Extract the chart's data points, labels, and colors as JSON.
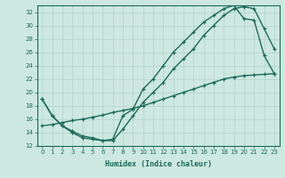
{
  "background_color": "#cde8e0",
  "line_color": "#1a6b5a",
  "grid_color": "#b8d8d0",
  "xlabel": "Humidex (Indice chaleur)",
  "ylim": [
    12,
    33
  ],
  "xlim": [
    -0.5,
    23.5
  ],
  "yticks": [
    12,
    14,
    16,
    18,
    20,
    22,
    24,
    26,
    28,
    30,
    32
  ],
  "xticks": [
    0,
    1,
    2,
    3,
    4,
    5,
    6,
    7,
    8,
    9,
    10,
    11,
    12,
    13,
    14,
    15,
    16,
    17,
    18,
    19,
    20,
    21,
    22,
    23
  ],
  "line1_x": [
    0,
    1,
    2,
    3,
    4,
    5,
    6,
    7,
    8,
    9,
    10,
    11,
    12,
    13,
    14,
    15,
    16,
    17,
    18,
    19,
    20,
    21,
    22,
    23
  ],
  "line1_y": [
    19.0,
    16.5,
    15.0,
    14.0,
    13.2,
    13.0,
    12.8,
    13.0,
    16.5,
    17.5,
    20.5,
    22.0,
    24.0,
    26.0,
    27.5,
    29.0,
    30.5,
    31.5,
    32.5,
    33.0,
    31.0,
    30.8,
    25.5,
    22.8
  ],
  "line2_x": [
    0,
    1,
    2,
    3,
    4,
    5,
    6,
    7,
    8,
    9,
    10,
    11,
    12,
    13,
    14,
    15,
    16,
    17,
    18,
    19,
    20,
    21,
    22,
    23
  ],
  "line2_y": [
    19.0,
    16.5,
    15.0,
    14.2,
    13.5,
    13.2,
    12.8,
    12.8,
    14.5,
    16.5,
    18.5,
    20.0,
    21.5,
    23.5,
    25.0,
    26.5,
    28.5,
    30.0,
    31.5,
    32.5,
    32.8,
    32.5,
    29.5,
    26.5
  ],
  "line3_x": [
    0,
    1,
    2,
    3,
    4,
    5,
    6,
    7,
    8,
    9,
    10,
    11,
    12,
    13,
    14,
    15,
    16,
    17,
    18,
    19,
    20,
    21,
    22,
    23
  ],
  "line3_y": [
    15.0,
    15.2,
    15.5,
    15.8,
    16.0,
    16.3,
    16.6,
    17.0,
    17.3,
    17.6,
    18.0,
    18.5,
    19.0,
    19.5,
    20.0,
    20.5,
    21.0,
    21.5,
    22.0,
    22.3,
    22.5,
    22.6,
    22.7,
    22.8
  ]
}
